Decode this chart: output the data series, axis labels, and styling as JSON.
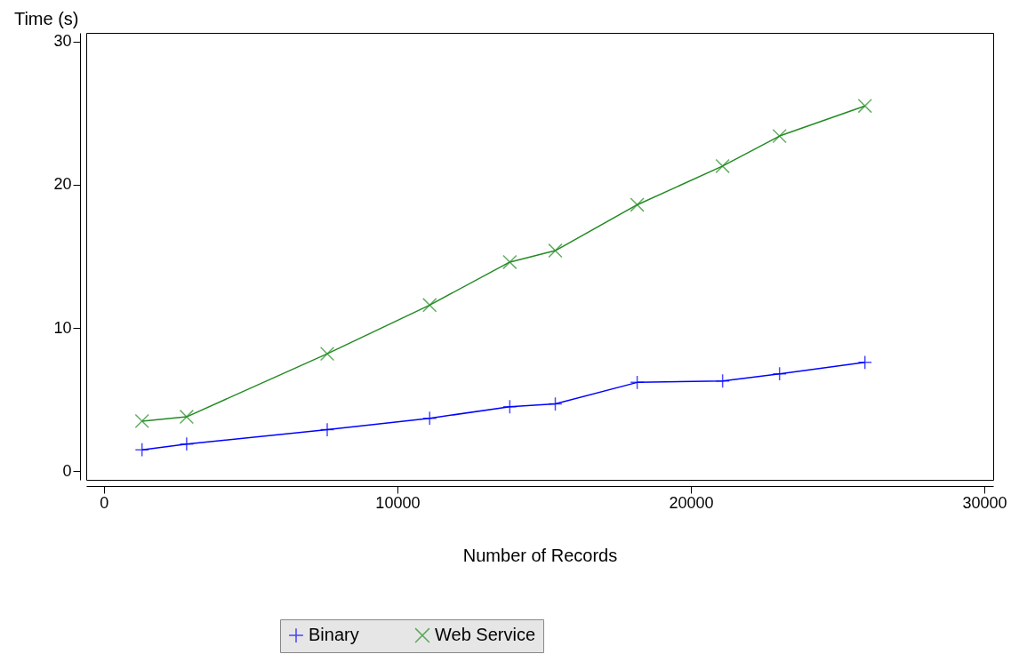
{
  "chart_data": {
    "type": "line",
    "xlabel": "Number of Records",
    "ylabel": "Time (s)",
    "xlim": [
      -600,
      30300
    ],
    "ylim": [
      -0.6,
      30.6
    ],
    "xticks": [
      0,
      10000,
      20000,
      30000
    ],
    "yticks": [
      0,
      10,
      20,
      30
    ],
    "grid": false,
    "legend": "bottom",
    "line_style": "solid",
    "series": [
      {
        "name": "Binary",
        "color": "#0000ff",
        "marker": "cross",
        "x": [
          1300,
          2820,
          7610,
          11100,
          13830,
          15380,
          18170,
          21080,
          23020,
          25930
        ],
        "values": [
          1.5,
          1.9,
          2.9,
          3.7,
          4.5,
          4.7,
          6.2,
          6.3,
          6.8,
          7.6
        ]
      },
      {
        "name": "Web Service",
        "color": "#228b22",
        "marker": "x",
        "x": [
          1300,
          2820,
          7610,
          11100,
          13830,
          15380,
          18170,
          21080,
          23020,
          25930
        ],
        "values": [
          3.5,
          3.8,
          8.2,
          11.6,
          14.6,
          15.4,
          18.6,
          21.3,
          23.4,
          25.5
        ]
      }
    ]
  }
}
